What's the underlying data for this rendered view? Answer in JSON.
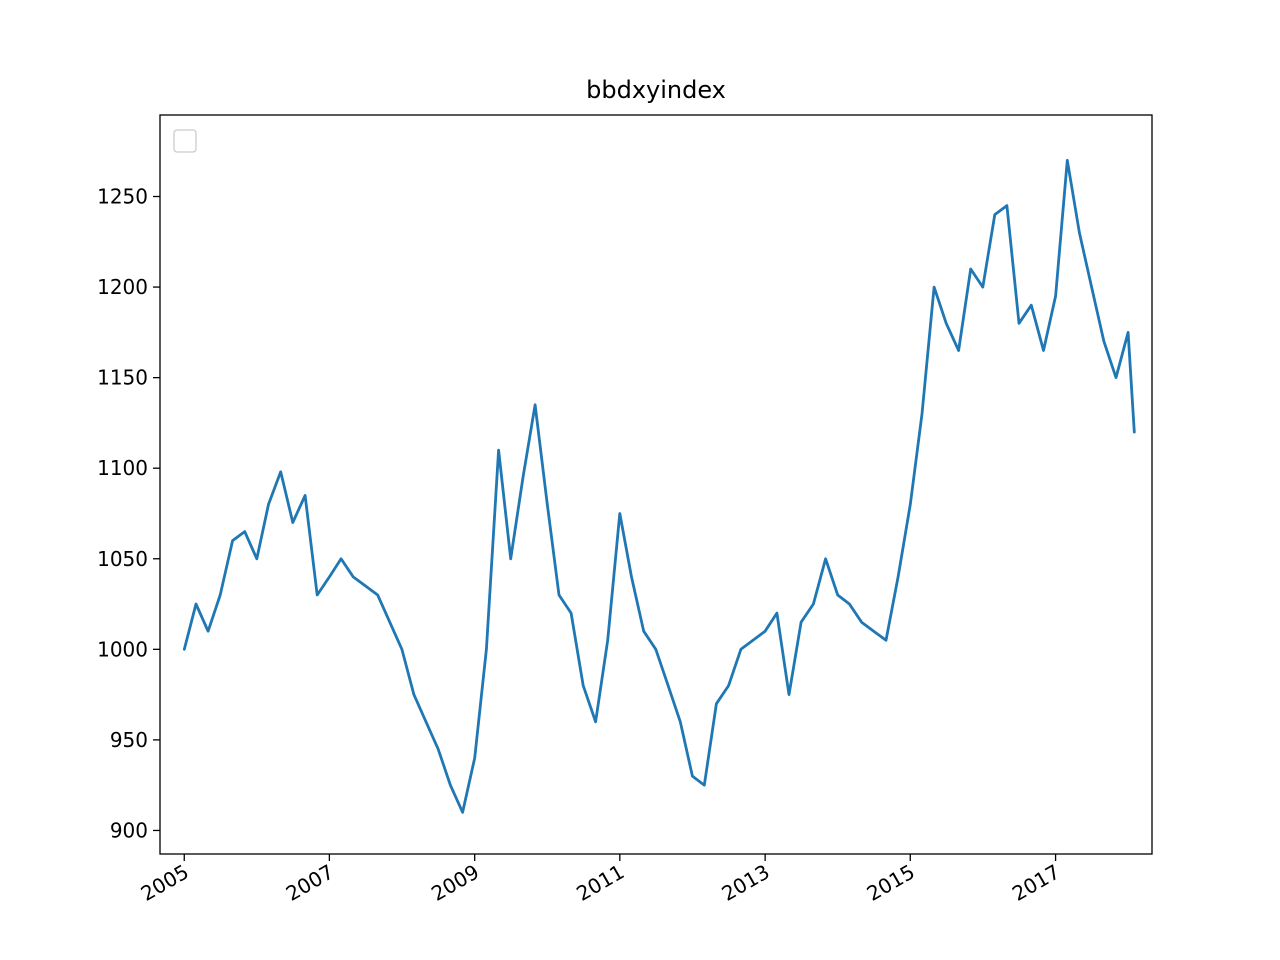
{
  "chart_data": {
    "type": "line",
    "title": "bbdxyindex",
    "xlabel": "",
    "ylabel": "",
    "x_range": [
      "2004-09-01",
      "2018-05-01"
    ],
    "ylim": [
      887,
      1295
    ],
    "grid": false,
    "legend": {
      "placement": "upper-left",
      "entries": []
    },
    "line_color": "#1f77b4",
    "x_ticks": [
      {
        "date": "2005-01-01",
        "label": "2005"
      },
      {
        "date": "2007-01-01",
        "label": "2007"
      },
      {
        "date": "2009-01-01",
        "label": "2009"
      },
      {
        "date": "2011-01-01",
        "label": "2011"
      },
      {
        "date": "2013-01-01",
        "label": "2013"
      },
      {
        "date": "2015-01-01",
        "label": "2015"
      },
      {
        "date": "2017-01-01",
        "label": "2017"
      }
    ],
    "y_ticks": [
      900,
      950,
      1000,
      1050,
      1100,
      1150,
      1200,
      1250
    ],
    "series": [
      {
        "x": [
          "2005-01-01",
          "2005-03-01",
          "2005-05-01",
          "2005-07-01",
          "2005-09-01",
          "2005-11-01",
          "2006-01-01",
          "2006-03-01",
          "2006-05-01",
          "2006-07-01",
          "2006-09-01",
          "2006-11-01",
          "2007-01-01",
          "2007-03-01",
          "2007-05-01",
          "2007-07-01",
          "2007-09-01",
          "2007-11-01",
          "2008-01-01",
          "2008-03-01",
          "2008-05-01",
          "2008-07-01",
          "2008-09-01",
          "2008-11-01",
          "2009-01-01",
          "2009-03-01",
          "2009-05-01",
          "2009-07-01",
          "2009-09-01",
          "2009-11-01",
          "2010-01-01",
          "2010-03-01",
          "2010-05-01",
          "2010-07-01",
          "2010-09-01",
          "2010-11-01",
          "2011-01-01",
          "2011-03-01",
          "2011-05-01",
          "2011-07-01",
          "2011-09-01",
          "2011-11-01",
          "2012-01-01",
          "2012-03-01",
          "2012-05-01",
          "2012-07-01",
          "2012-09-01",
          "2012-11-01",
          "2013-01-01",
          "2013-03-01",
          "2013-05-01",
          "2013-07-01",
          "2013-09-01",
          "2013-11-01",
          "2014-01-01",
          "2014-03-01",
          "2014-05-01",
          "2014-07-01",
          "2014-09-01",
          "2014-11-01",
          "2015-01-01",
          "2015-03-01",
          "2015-05-01",
          "2015-07-01",
          "2015-09-01",
          "2015-11-01",
          "2016-01-01",
          "2016-03-01",
          "2016-05-01",
          "2016-07-01",
          "2016-09-01",
          "2016-11-01",
          "2017-01-01",
          "2017-03-01",
          "2017-05-01",
          "2017-07-01",
          "2017-09-01",
          "2017-11-01",
          "2018-01-01",
          "2018-02-01"
        ],
        "y": [
          1000,
          1025,
          1010,
          1030,
          1060,
          1065,
          1050,
          1080,
          1098,
          1070,
          1085,
          1030,
          1040,
          1050,
          1040,
          1035,
          1030,
          1015,
          1000,
          975,
          960,
          945,
          925,
          910,
          940,
          1000,
          1110,
          1050,
          1095,
          1135,
          1080,
          1030,
          1020,
          980,
          960,
          1005,
          1075,
          1040,
          1010,
          1000,
          980,
          960,
          930,
          925,
          970,
          980,
          1000,
          1005,
          1010,
          1020,
          975,
          1015,
          1025,
          1050,
          1030,
          1025,
          1015,
          1010,
          1005,
          1040,
          1080,
          1130,
          1200,
          1180,
          1165,
          1210,
          1200,
          1240,
          1245,
          1180,
          1190,
          1165,
          1195,
          1270,
          1230,
          1200,
          1170,
          1150,
          1175,
          1120
        ]
      }
    ]
  }
}
